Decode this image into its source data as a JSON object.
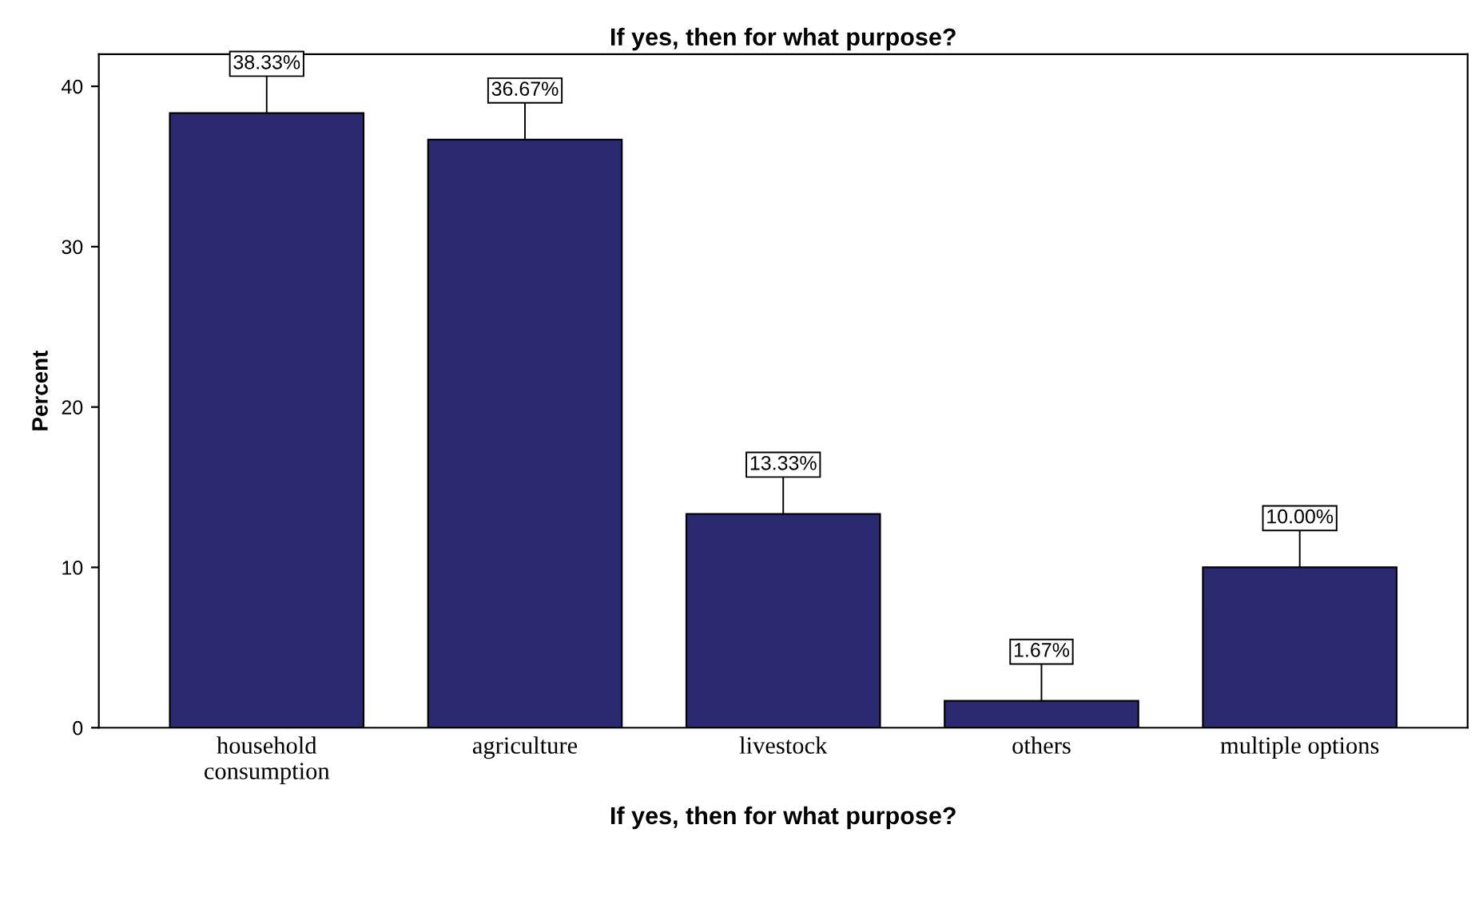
{
  "chart_data": {
    "type": "bar",
    "title": "If yes, then for what purpose?",
    "categories": [
      "household\nconsumption",
      "agriculture",
      "livestock",
      "others",
      "multiple options"
    ],
    "values": [
      38.33,
      36.67,
      13.33,
      1.67,
      10.0
    ],
    "value_labels": [
      "38.33%",
      "36.67%",
      "13.33%",
      "1.67%",
      "10.00%"
    ],
    "color": "#2b2a70",
    "xlabel": "If yes, then for what purpose?",
    "ylabel": "Percent",
    "ylim": [
      0,
      42
    ],
    "yticks": [
      0,
      10,
      20,
      30,
      40
    ],
    "grid": false
  }
}
